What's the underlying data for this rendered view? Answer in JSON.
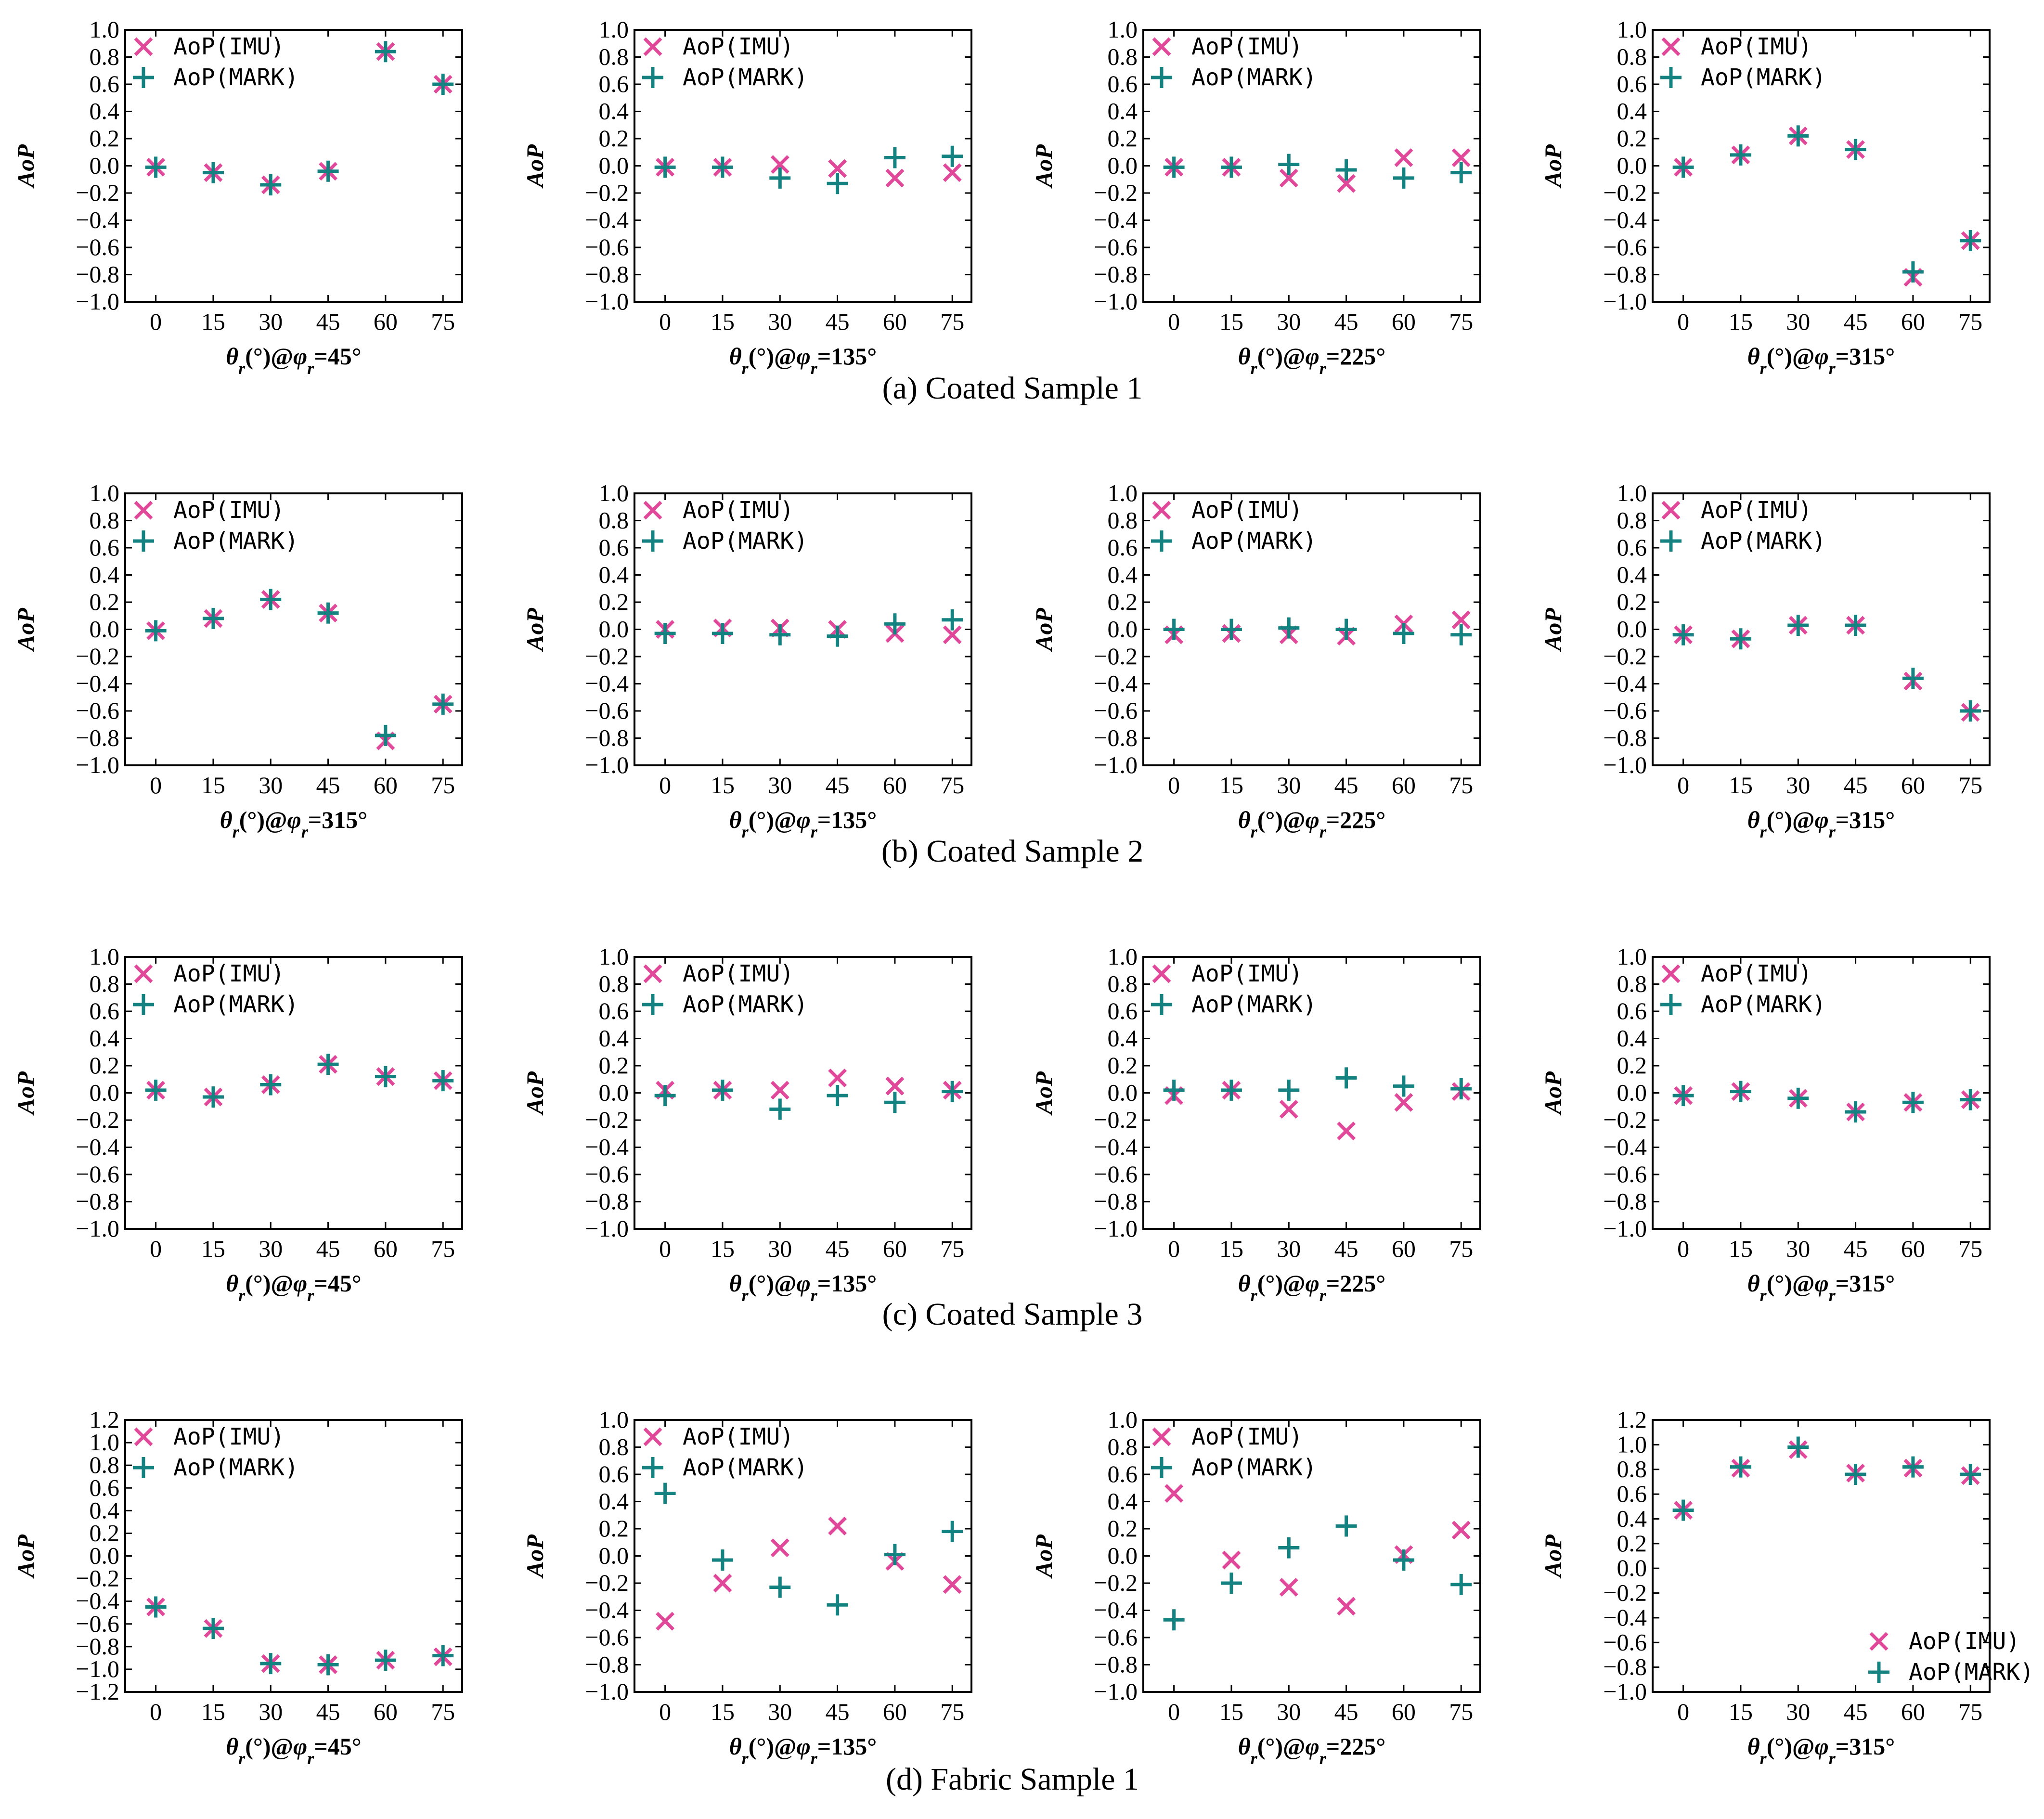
{
  "colors": {
    "imu": "#e0489a",
    "mark": "#138280",
    "axis": "#000000"
  },
  "markers": {
    "imu": "x-marker",
    "mark": "plus-marker"
  },
  "legend": {
    "imu": "AoP(IMU)",
    "mark": "AoP(MARK)"
  },
  "captions": [
    "(a) Coated Sample 1",
    "(b) Coated Sample 2",
    "(c) Coated Sample 3",
    "(d) Fabric Sample 1"
  ],
  "chart_data": [
    {
      "type": "scatter",
      "row": 0,
      "col": 0,
      "ylabel": "AoP",
      "xlabel_phi": "45°",
      "x": [
        0,
        15,
        30,
        45,
        60,
        75
      ],
      "ylim": [
        -1,
        1
      ],
      "yticks": [
        -1.0,
        -0.8,
        -0.6,
        -0.4,
        -0.2,
        0.0,
        0.2,
        0.4,
        0.6,
        0.8,
        1.0
      ],
      "legend": "top-left",
      "series": [
        {
          "name": "AoP(IMU)",
          "values": [
            -0.01,
            -0.05,
            -0.14,
            -0.04,
            0.84,
            0.6
          ]
        },
        {
          "name": "AoP(MARK)",
          "values": [
            -0.01,
            -0.05,
            -0.14,
            -0.04,
            0.84,
            0.6
          ]
        }
      ]
    },
    {
      "type": "scatter",
      "row": 0,
      "col": 1,
      "ylabel": "AoP",
      "xlabel_phi": "135°",
      "x": [
        0,
        15,
        30,
        45,
        60,
        75
      ],
      "ylim": [
        -1,
        1
      ],
      "yticks": [
        -1.0,
        -0.8,
        -0.6,
        -0.4,
        -0.2,
        0.0,
        0.2,
        0.4,
        0.6,
        0.8,
        1.0
      ],
      "legend": "top-left",
      "series": [
        {
          "name": "AoP(IMU)",
          "values": [
            -0.01,
            -0.01,
            0.01,
            -0.02,
            -0.09,
            -0.05
          ]
        },
        {
          "name": "AoP(MARK)",
          "values": [
            -0.01,
            -0.01,
            -0.09,
            -0.13,
            0.06,
            0.07
          ]
        }
      ]
    },
    {
      "type": "scatter",
      "row": 0,
      "col": 2,
      "ylabel": "AoP",
      "xlabel_phi": "225°",
      "x": [
        0,
        15,
        30,
        45,
        60,
        75
      ],
      "ylim": [
        -1,
        1
      ],
      "yticks": [
        -1.0,
        -0.8,
        -0.6,
        -0.4,
        -0.2,
        0.0,
        0.2,
        0.4,
        0.6,
        0.8,
        1.0
      ],
      "legend": "top-left",
      "series": [
        {
          "name": "AoP(IMU)",
          "values": [
            -0.01,
            -0.01,
            -0.09,
            -0.13,
            0.06,
            0.06
          ]
        },
        {
          "name": "AoP(MARK)",
          "values": [
            -0.01,
            -0.01,
            0.01,
            -0.03,
            -0.09,
            -0.05
          ]
        }
      ]
    },
    {
      "type": "scatter",
      "row": 0,
      "col": 3,
      "ylabel": "AoP",
      "xlabel_phi": "315°",
      "x": [
        0,
        15,
        30,
        45,
        60,
        75
      ],
      "ylim": [
        -1,
        1
      ],
      "yticks": [
        -1.0,
        -0.8,
        -0.6,
        -0.4,
        -0.2,
        0.0,
        0.2,
        0.4,
        0.6,
        0.8,
        1.0
      ],
      "legend": "top-left",
      "series": [
        {
          "name": "AoP(IMU)",
          "values": [
            -0.01,
            0.08,
            0.22,
            0.12,
            -0.82,
            -0.55
          ]
        },
        {
          "name": "AoP(MARK)",
          "values": [
            -0.01,
            0.08,
            0.22,
            0.12,
            -0.78,
            -0.55
          ]
        }
      ]
    },
    {
      "type": "scatter",
      "row": 1,
      "col": 0,
      "ylabel": "AoP",
      "xlabel_phi": "315°",
      "x": [
        0,
        15,
        30,
        45,
        60,
        75
      ],
      "ylim": [
        -1,
        1
      ],
      "yticks": [
        -1.0,
        -0.8,
        -0.6,
        -0.4,
        -0.2,
        0.0,
        0.2,
        0.4,
        0.6,
        0.8,
        1.0
      ],
      "legend": "top-left",
      "series": [
        {
          "name": "AoP(IMU)",
          "values": [
            -0.01,
            0.08,
            0.22,
            0.12,
            -0.82,
            -0.55
          ]
        },
        {
          "name": "AoP(MARK)",
          "values": [
            -0.01,
            0.08,
            0.22,
            0.12,
            -0.78,
            -0.55
          ]
        }
      ]
    },
    {
      "type": "scatter",
      "row": 1,
      "col": 1,
      "ylabel": "AoP",
      "xlabel_phi": "135°",
      "x": [
        0,
        15,
        30,
        45,
        60,
        75
      ],
      "ylim": [
        -1,
        1
      ],
      "yticks": [
        -1.0,
        -0.8,
        -0.6,
        -0.4,
        -0.2,
        0.0,
        0.2,
        0.4,
        0.6,
        0.8,
        1.0
      ],
      "legend": "top-left",
      "series": [
        {
          "name": "AoP(IMU)",
          "values": [
            0.0,
            0.01,
            0.01,
            0.0,
            -0.03,
            -0.04
          ]
        },
        {
          "name": "AoP(MARK)",
          "values": [
            -0.03,
            -0.03,
            -0.04,
            -0.05,
            0.04,
            0.07
          ]
        }
      ]
    },
    {
      "type": "scatter",
      "row": 1,
      "col": 2,
      "ylabel": "AoP",
      "xlabel_phi": "225°",
      "x": [
        0,
        15,
        30,
        45,
        60,
        75
      ],
      "ylim": [
        -1,
        1
      ],
      "yticks": [
        -1.0,
        -0.8,
        -0.6,
        -0.4,
        -0.2,
        0.0,
        0.2,
        0.4,
        0.6,
        0.8,
        1.0
      ],
      "legend": "top-left",
      "series": [
        {
          "name": "AoP(IMU)",
          "values": [
            -0.04,
            -0.03,
            -0.04,
            -0.05,
            0.04,
            0.07
          ]
        },
        {
          "name": "AoP(MARK)",
          "values": [
            0.0,
            0.0,
            0.01,
            0.0,
            -0.03,
            -0.04
          ]
        }
      ]
    },
    {
      "type": "scatter",
      "row": 1,
      "col": 3,
      "ylabel": "AoP",
      "xlabel_phi": "315°",
      "x": [
        0,
        15,
        30,
        45,
        60,
        75
      ],
      "ylim": [
        -1,
        1
      ],
      "yticks": [
        -1.0,
        -0.8,
        -0.6,
        -0.4,
        -0.2,
        0.0,
        0.2,
        0.4,
        0.6,
        0.8,
        1.0
      ],
      "legend": "top-left",
      "series": [
        {
          "name": "AoP(IMU)",
          "values": [
            -0.04,
            -0.07,
            0.03,
            0.03,
            -0.38,
            -0.61
          ]
        },
        {
          "name": "AoP(MARK)",
          "values": [
            -0.04,
            -0.07,
            0.03,
            0.03,
            -0.36,
            -0.6
          ]
        }
      ]
    },
    {
      "type": "scatter",
      "row": 2,
      "col": 0,
      "ylabel": "AoP",
      "xlabel_phi": "45°",
      "x": [
        0,
        15,
        30,
        45,
        60,
        75
      ],
      "ylim": [
        -1,
        1
      ],
      "yticks": [
        -1.0,
        -0.8,
        -0.6,
        -0.4,
        -0.2,
        0.0,
        0.2,
        0.4,
        0.6,
        0.8,
        1.0
      ],
      "legend": "top-left",
      "series": [
        {
          "name": "AoP(IMU)",
          "values": [
            0.02,
            -0.03,
            0.06,
            0.21,
            0.12,
            0.09
          ]
        },
        {
          "name": "AoP(MARK)",
          "values": [
            0.02,
            -0.03,
            0.06,
            0.21,
            0.12,
            0.09
          ]
        }
      ]
    },
    {
      "type": "scatter",
      "row": 2,
      "col": 1,
      "ylabel": "AoP",
      "xlabel_phi": "135°",
      "x": [
        0,
        15,
        30,
        45,
        60,
        75
      ],
      "ylim": [
        -1,
        1
      ],
      "yticks": [
        -1.0,
        -0.8,
        -0.6,
        -0.4,
        -0.2,
        0.0,
        0.2,
        0.4,
        0.6,
        0.8,
        1.0
      ],
      "legend": "top-left",
      "series": [
        {
          "name": "AoP(IMU)",
          "values": [
            0.02,
            0.02,
            0.02,
            0.11,
            0.05,
            0.02
          ]
        },
        {
          "name": "AoP(MARK)",
          "values": [
            -0.02,
            0.02,
            -0.12,
            -0.02,
            -0.07,
            0.01
          ]
        }
      ]
    },
    {
      "type": "scatter",
      "row": 2,
      "col": 2,
      "ylabel": "AoP",
      "xlabel_phi": "225°",
      "x": [
        0,
        15,
        30,
        45,
        60,
        75
      ],
      "ylim": [
        -1,
        1
      ],
      "yticks": [
        -1.0,
        -0.8,
        -0.6,
        -0.4,
        -0.2,
        0.0,
        0.2,
        0.4,
        0.6,
        0.8,
        1.0
      ],
      "legend": "top-left",
      "series": [
        {
          "name": "AoP(IMU)",
          "values": [
            -0.02,
            0.02,
            -0.12,
            -0.28,
            -0.07,
            0.01
          ]
        },
        {
          "name": "AoP(MARK)",
          "values": [
            0.02,
            0.02,
            0.02,
            0.11,
            0.05,
            0.03
          ]
        }
      ]
    },
    {
      "type": "scatter",
      "row": 2,
      "col": 3,
      "ylabel": "AoP",
      "xlabel_phi": "315°",
      "x": [
        0,
        15,
        30,
        45,
        60,
        75
      ],
      "ylim": [
        -1,
        1
      ],
      "yticks": [
        -1.0,
        -0.8,
        -0.6,
        -0.4,
        -0.2,
        0.0,
        0.2,
        0.4,
        0.6,
        0.8,
        1.0
      ],
      "legend": "top-left",
      "series": [
        {
          "name": "AoP(IMU)",
          "values": [
            -0.02,
            0.01,
            -0.04,
            -0.14,
            -0.07,
            -0.05
          ]
        },
        {
          "name": "AoP(MARK)",
          "values": [
            -0.02,
            0.01,
            -0.04,
            -0.14,
            -0.07,
            -0.05
          ]
        }
      ]
    },
    {
      "type": "scatter",
      "row": 3,
      "col": 0,
      "ylabel": "AoP",
      "xlabel_phi": "45°",
      "x": [
        0,
        15,
        30,
        45,
        60,
        75
      ],
      "ylim": [
        -1.2,
        1.2
      ],
      "yticks": [
        -1.2,
        -1.0,
        -0.8,
        -0.6,
        -0.4,
        -0.2,
        0.0,
        0.2,
        0.4,
        0.6,
        0.8,
        1.0,
        1.2
      ],
      "legend": "top-left",
      "series": [
        {
          "name": "AoP(IMU)",
          "values": [
            -0.45,
            -0.64,
            -0.95,
            -0.96,
            -0.92,
            -0.89
          ]
        },
        {
          "name": "AoP(MARK)",
          "values": [
            -0.45,
            -0.64,
            -0.95,
            -0.96,
            -0.92,
            -0.88
          ]
        }
      ]
    },
    {
      "type": "scatter",
      "row": 3,
      "col": 1,
      "ylabel": "AoP",
      "xlabel_phi": "135°",
      "x": [
        0,
        15,
        30,
        45,
        60,
        75
      ],
      "ylim": [
        -1,
        1
      ],
      "yticks": [
        -1.0,
        -0.8,
        -0.6,
        -0.4,
        -0.2,
        0.0,
        0.2,
        0.4,
        0.6,
        0.8,
        1.0
      ],
      "legend": "top-left",
      "series": [
        {
          "name": "AoP(IMU)",
          "values": [
            -0.48,
            -0.2,
            0.06,
            0.22,
            -0.04,
            -0.21
          ]
        },
        {
          "name": "AoP(MARK)",
          "values": [
            0.46,
            -0.03,
            -0.23,
            -0.36,
            0.01,
            0.18
          ]
        }
      ]
    },
    {
      "type": "scatter",
      "row": 3,
      "col": 2,
      "ylabel": "AoP",
      "xlabel_phi": "225°",
      "x": [
        0,
        15,
        30,
        45,
        60,
        75
      ],
      "ylim": [
        -1,
        1
      ],
      "yticks": [
        -1.0,
        -0.8,
        -0.6,
        -0.4,
        -0.2,
        0.0,
        0.2,
        0.4,
        0.6,
        0.8,
        1.0
      ],
      "legend": "top-left",
      "series": [
        {
          "name": "AoP(IMU)",
          "values": [
            0.46,
            -0.03,
            -0.23,
            -0.37,
            0.01,
            0.19
          ]
        },
        {
          "name": "AoP(MARK)",
          "values": [
            -0.47,
            -0.2,
            0.06,
            0.22,
            -0.03,
            -0.21
          ]
        }
      ]
    },
    {
      "type": "scatter",
      "row": 3,
      "col": 3,
      "ylabel": "AoP",
      "xlabel_phi": "315°",
      "x": [
        0,
        15,
        30,
        45,
        60,
        75
      ],
      "ylim": [
        -1,
        1.2
      ],
      "yticks": [
        -1.0,
        -0.8,
        -0.6,
        -0.4,
        -0.2,
        0.0,
        0.2,
        0.4,
        0.6,
        0.8,
        1.0,
        1.2
      ],
      "legend": "bottom-right",
      "series": [
        {
          "name": "AoP(IMU)",
          "values": [
            0.47,
            0.81,
            0.96,
            0.77,
            0.81,
            0.75
          ]
        },
        {
          "name": "AoP(MARK)",
          "values": [
            0.47,
            0.82,
            0.98,
            0.76,
            0.82,
            0.76
          ]
        }
      ]
    }
  ]
}
